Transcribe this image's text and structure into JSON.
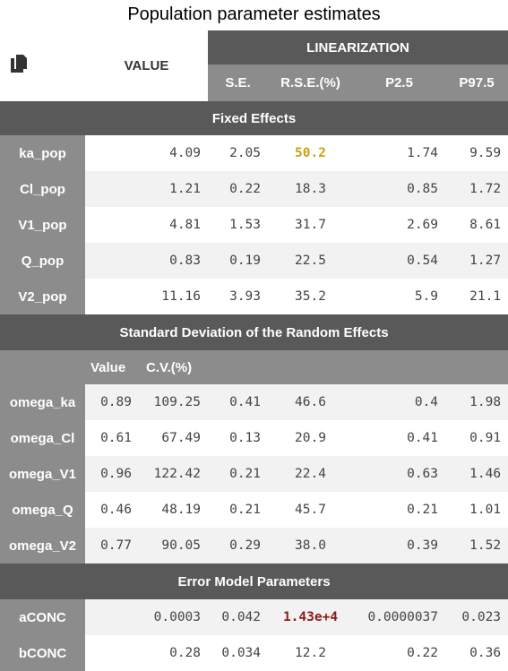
{
  "page_title": "Population parameter estimates",
  "header": {
    "value_label": "VALUE",
    "linearization_label": "LINEARIZATION",
    "columns": [
      "S.E.",
      "R.S.E.(%)",
      "P2.5",
      "P97.5"
    ],
    "copy_icon": "copy-icon"
  },
  "fixed_effects": {
    "title": "Fixed Effects",
    "rows": [
      {
        "name": "ka_pop",
        "value": "4.09",
        "se": "2.05",
        "rse": "50.2",
        "p25": "1.74",
        "p975": "9.59"
      },
      {
        "name": "Cl_pop",
        "value": "1.21",
        "se": "0.22",
        "rse": "18.3",
        "p25": "0.85",
        "p975": "1.72"
      },
      {
        "name": "V1_pop",
        "value": "4.81",
        "se": "1.53",
        "rse": "31.7",
        "p25": "2.69",
        "p975": "8.61"
      },
      {
        "name": "Q_pop",
        "value": "0.83",
        "se": "0.19",
        "rse": "22.5",
        "p25": "0.54",
        "p975": "1.27"
      },
      {
        "name": "V2_pop",
        "value": "11.16",
        "se": "3.93",
        "rse": "35.2",
        "p25": "5.9",
        "p975": "21.1"
      }
    ]
  },
  "random_effects": {
    "title": "Standard Deviation of the Random Effects",
    "sub_value_label": "Value",
    "sub_cv_label": "C.V.(%)",
    "rows": [
      {
        "name": "omega_ka",
        "value": "0.89",
        "cv": "109.25",
        "se": "0.41",
        "rse": "46.6",
        "p25": "0.4",
        "p975": "1.98"
      },
      {
        "name": "omega_Cl",
        "value": "0.61",
        "cv": "67.49",
        "se": "0.13",
        "rse": "20.9",
        "p25": "0.41",
        "p975": "0.91"
      },
      {
        "name": "omega_V1",
        "value": "0.96",
        "cv": "122.42",
        "se": "0.21",
        "rse": "22.4",
        "p25": "0.63",
        "p975": "1.46"
      },
      {
        "name": "omega_Q",
        "value": "0.46",
        "cv": "48.19",
        "se": "0.21",
        "rse": "45.7",
        "p25": "0.21",
        "p975": "1.01"
      },
      {
        "name": "omega_V2",
        "value": "0.77",
        "cv": "90.05",
        "se": "0.29",
        "rse": "38.0",
        "p25": "0.39",
        "p975": "1.52"
      }
    ]
  },
  "error_model": {
    "title": "Error Model Parameters",
    "rows": [
      {
        "name": "aCONC",
        "value": "0.0003",
        "se": "0.042",
        "rse": "1.43e+4",
        "p25": "0.0000037",
        "p975": "0.023"
      },
      {
        "name": "bCONC",
        "value": "0.28",
        "se": "0.034",
        "rse": "12.2",
        "p25": "0.22",
        "p975": "0.36"
      }
    ]
  },
  "colors": {
    "header_dark": "#595959",
    "header_mid": "#8c8c8c",
    "row_alt": "#f2f2f2",
    "warn_text": "#c6a219",
    "alert_text": "#8b1a1a"
  }
}
